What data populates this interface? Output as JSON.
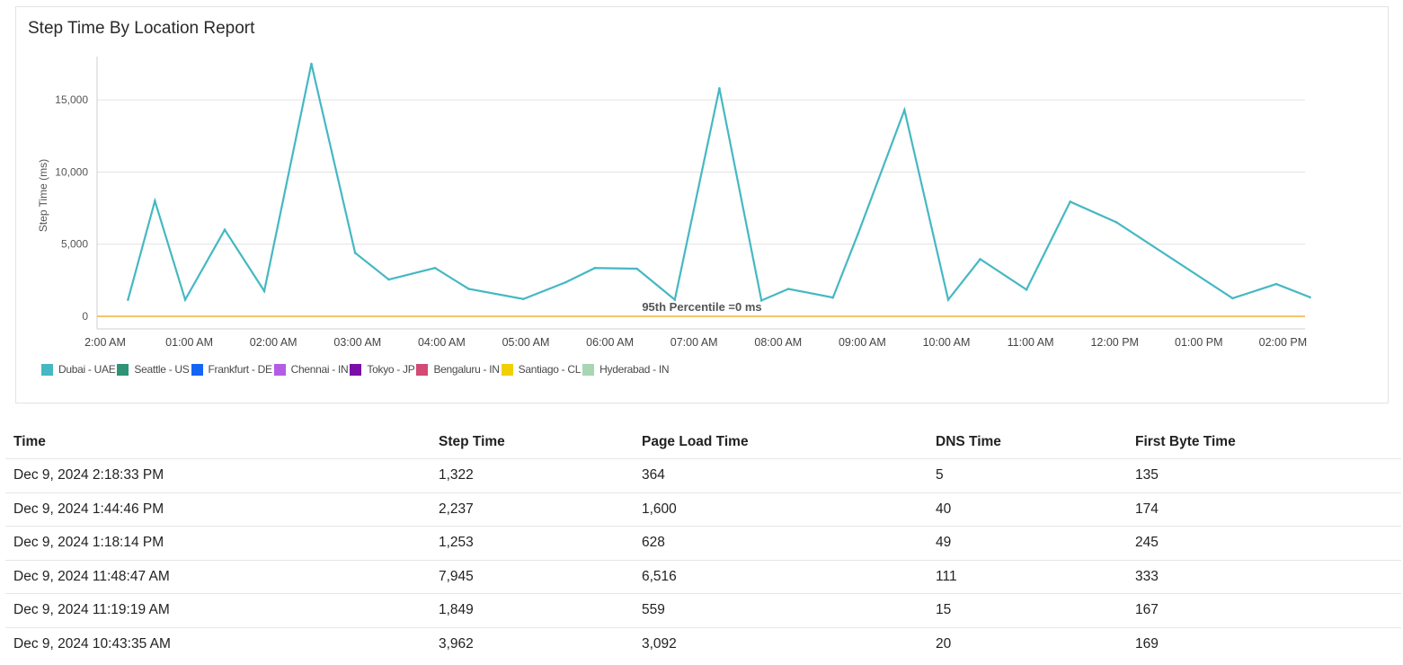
{
  "report": {
    "title": "Step Time By Location Report"
  },
  "chart_data": {
    "type": "line",
    "title": "Step Time By Location Report",
    "ylabel": "Step Time (ms)",
    "xlabel": "",
    "ylim": [
      0,
      18000
    ],
    "yticks": [
      0,
      5000,
      10000,
      15000
    ],
    "ytick_labels": [
      "0",
      "5,000",
      "10,000",
      "15,000"
    ],
    "x_range_hours": [
      0,
      14.45
    ],
    "xticks": [
      0,
      1,
      2,
      3,
      4,
      5,
      6,
      7,
      8,
      9,
      10,
      11,
      12,
      13,
      14
    ],
    "xtick_labels": [
      "2:00 AM",
      "01:00 AM",
      "02:00 AM",
      "03:00 AM",
      "04:00 AM",
      "05:00 AM",
      "06:00 AM",
      "07:00 AM",
      "08:00 AM",
      "09:00 AM",
      "10:00 AM",
      "11:00 AM",
      "12:00 PM",
      "01:00 PM",
      "02:00 PM"
    ],
    "grid": true,
    "legend_position": "bottom-left",
    "series": [
      {
        "name": "Dubai - UAE",
        "color": "#45b8c3",
        "x": [
          0.25,
          0.57,
          0.93,
          1.4,
          1.87,
          2.43,
          2.95,
          3.35,
          3.9,
          4.3,
          4.95,
          5.45,
          5.8,
          6.3,
          6.75,
          7.28,
          7.78,
          8.1,
          8.63,
          8.93,
          9.48,
          10.0,
          10.38,
          10.93,
          11.45,
          12.0,
          13.38,
          13.9,
          14.3
        ],
        "values": [
          1150,
          8000,
          1150,
          6000,
          1750,
          17500,
          4400,
          2550,
          3350,
          1900,
          1200,
          2350,
          3350,
          3300,
          1150,
          15800,
          1100,
          1900,
          1300,
          5750,
          14300,
          1150,
          3962,
          1849,
          7945,
          6516,
          1253,
          2237,
          1322
        ]
      }
    ],
    "legend": [
      {
        "name": "Dubai - UAE",
        "color": "#45b8c3"
      },
      {
        "name": "Seattle - US",
        "color": "#2e9477"
      },
      {
        "name": "Frankfurt - DE",
        "color": "#1565f5"
      },
      {
        "name": "Chennai - IN",
        "color": "#b45ce6"
      },
      {
        "name": "Tokyo - JP",
        "color": "#7a0fa8"
      },
      {
        "name": "Bengaluru - IN",
        "color": "#d24a75"
      },
      {
        "name": "Santiago - CL",
        "color": "#f0d000"
      },
      {
        "name": "Hyderabad - IN",
        "color": "#a9d6b2"
      }
    ],
    "reference_line": {
      "value": 0,
      "label": "95th Percentile =0 ms",
      "color": "#f0b23a"
    }
  },
  "table": {
    "columns": [
      "Time",
      "Step Time",
      "Page Load Time",
      "DNS Time",
      "First Byte Time"
    ],
    "rows": [
      [
        "Dec 9, 2024 2:18:33 PM",
        "1,322",
        "364",
        "5",
        "135"
      ],
      [
        "Dec 9, 2024 1:44:46 PM",
        "2,237",
        "1,600",
        "40",
        "174"
      ],
      [
        "Dec 9, 2024 1:18:14 PM",
        "1,253",
        "628",
        "49",
        "245"
      ],
      [
        "Dec 9, 2024 11:48:47 AM",
        "7,945",
        "6,516",
        "111",
        "333"
      ],
      [
        "Dec 9, 2024 11:19:19 AM",
        "1,849",
        "559",
        "15",
        "167"
      ],
      [
        "Dec 9, 2024 10:43:35 AM",
        "3,962",
        "3,092",
        "20",
        "169"
      ]
    ]
  }
}
